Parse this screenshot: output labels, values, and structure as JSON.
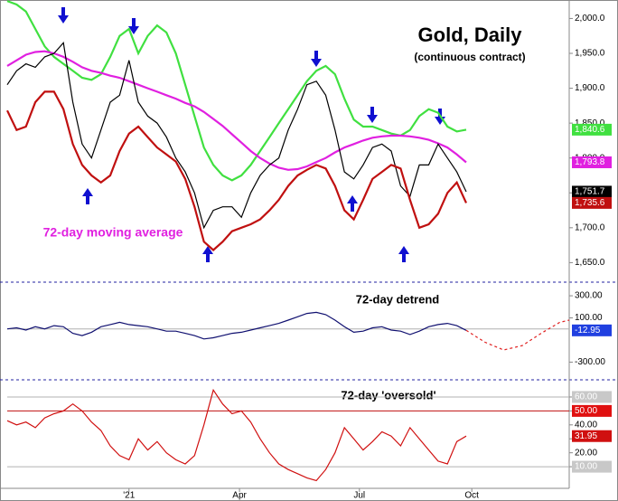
{
  "chart_data": [
    {
      "type": "line",
      "title": "Gold, Daily",
      "subtitle": "(continuous contract)",
      "annotation": "72-day moving average",
      "annotation_color": "#e020e0",
      "xlim": [
        0,
        300
      ],
      "ylim": [
        1622,
        2020
      ],
      "yticks": [
        {
          "value": 1650,
          "label": "1,650.0"
        },
        {
          "value": 1700,
          "label": "1,700.0"
        },
        {
          "value": 1750,
          "label": "1,750.0"
        },
        {
          "value": 1800,
          "label": "1,800.0"
        },
        {
          "value": 1850,
          "label": "1,850.0"
        },
        {
          "value": 1900,
          "label": "1,900.0"
        },
        {
          "value": 1950,
          "label": "1,950.0"
        },
        {
          "value": 2000,
          "label": "2,000.0"
        }
      ],
      "x": [
        0,
        5,
        10,
        15,
        20,
        25,
        30,
        35,
        40,
        45,
        50,
        55,
        60,
        65,
        70,
        75,
        80,
        85,
        90,
        95,
        100,
        105,
        110,
        115,
        120,
        125,
        130,
        135,
        140,
        145,
        150,
        155,
        160,
        165,
        170,
        175,
        180,
        185,
        190,
        195,
        200,
        205,
        210,
        215,
        220,
        225,
        230,
        235,
        240,
        245
      ],
      "series": [
        {
          "color": "#40e040",
          "last_label": "1,840.6",
          "values": [
            2025,
            2020,
            2010,
            1985,
            1960,
            1945,
            1935,
            1925,
            1915,
            1912,
            1920,
            1945,
            1975,
            1985,
            1950,
            1975,
            1990,
            1980,
            1950,
            1905,
            1860,
            1815,
            1790,
            1775,
            1768,
            1775,
            1790,
            1810,
            1830,
            1850,
            1870,
            1890,
            1910,
            1925,
            1932,
            1920,
            1885,
            1855,
            1845,
            1845,
            1840,
            1835,
            1832,
            1840,
            1860,
            1870,
            1865,
            1845,
            1838,
            1840.6
          ]
        },
        {
          "color": "#e020e0",
          "last_label": "1,793.8",
          "values": [
            1932,
            1940,
            1948,
            1952,
            1953,
            1950,
            1945,
            1938,
            1930,
            1925,
            1922,
            1918,
            1915,
            1910,
            1905,
            1900,
            1895,
            1890,
            1885,
            1879,
            1874,
            1866,
            1856,
            1846,
            1834,
            1822,
            1810,
            1800,
            1792,
            1786,
            1783,
            1784,
            1788,
            1794,
            1800,
            1808,
            1815,
            1820,
            1825,
            1829,
            1831,
            1832,
            1832,
            1831,
            1829,
            1826,
            1821,
            1815,
            1805,
            1793.8
          ]
        },
        {
          "color": "#000000",
          "last_label": "1,751.7",
          "values": [
            1905,
            1925,
            1935,
            1930,
            1945,
            1950,
            1965,
            1880,
            1820,
            1800,
            1840,
            1880,
            1890,
            1940,
            1880,
            1860,
            1850,
            1830,
            1800,
            1780,
            1750,
            1700,
            1725,
            1730,
            1730,
            1715,
            1750,
            1775,
            1790,
            1800,
            1840,
            1870,
            1905,
            1910,
            1890,
            1840,
            1780,
            1770,
            1790,
            1815,
            1820,
            1810,
            1760,
            1745,
            1790,
            1790,
            1820,
            1800,
            1780,
            1751.7
          ]
        },
        {
          "color": "#c01010",
          "last_label": "1,735.6",
          "values": [
            1868,
            1840,
            1845,
            1880,
            1895,
            1895,
            1870,
            1820,
            1790,
            1775,
            1765,
            1775,
            1810,
            1835,
            1845,
            1830,
            1815,
            1805,
            1795,
            1770,
            1730,
            1680,
            1668,
            1680,
            1695,
            1700,
            1705,
            1712,
            1725,
            1740,
            1760,
            1775,
            1783,
            1790,
            1785,
            1760,
            1725,
            1712,
            1740,
            1770,
            1780,
            1790,
            1785,
            1740,
            1700,
            1705,
            1720,
            1750,
            1765,
            1735.6
          ]
        }
      ]
    },
    {
      "type": "line",
      "title": "72-day detrend",
      "xlim": [
        0,
        300
      ],
      "ylim": [
        -460,
        415
      ],
      "yticks": [
        {
          "value": -300,
          "label": "-300.00"
        },
        {
          "value": 100,
          "label": "100.00"
        },
        {
          "value": 300,
          "label": "300.00"
        }
      ],
      "reference_lines": [
        {
          "value": 0,
          "color": "#b0b0b0"
        }
      ],
      "x": [
        0,
        5,
        10,
        15,
        20,
        25,
        30,
        35,
        40,
        45,
        50,
        55,
        60,
        65,
        70,
        75,
        80,
        85,
        90,
        95,
        100,
        105,
        110,
        115,
        120,
        125,
        130,
        135,
        140,
        145,
        150,
        155,
        160,
        165,
        170,
        175,
        180,
        185,
        190,
        195,
        200,
        205,
        210,
        215,
        220,
        225,
        230,
        235,
        240,
        245
      ],
      "series": [
        {
          "color": "#101070",
          "last_label": "-12.95",
          "label_color": "#2040e0",
          "values": [
            0,
            10,
            -10,
            20,
            0,
            30,
            20,
            -40,
            -60,
            -30,
            20,
            40,
            60,
            40,
            30,
            20,
            0,
            -20,
            -20,
            -40,
            -60,
            -90,
            -80,
            -60,
            -40,
            -30,
            -10,
            10,
            30,
            50,
            80,
            110,
            140,
            150,
            130,
            80,
            20,
            -30,
            -20,
            10,
            20,
            -10,
            -20,
            -50,
            -20,
            20,
            40,
            50,
            30,
            -12.95
          ]
        },
        {
          "color": "#e02020",
          "dash": true,
          "x": [
            245,
            255,
            265,
            275,
            285,
            295,
            300
          ],
          "values": [
            -12.95,
            -120,
            -190,
            -150,
            -40,
            60,
            80
          ]
        }
      ]
    },
    {
      "type": "line",
      "title": "72-day 'oversold'",
      "xlim": [
        0,
        300
      ],
      "ylim": [
        -5.5,
        71
      ],
      "yticks": [
        {
          "value": 10,
          "label": "10.00",
          "color": "#c8c8c8"
        },
        {
          "value": 20,
          "label": "20.00"
        },
        {
          "value": 30
        },
        {
          "value": 40,
          "label": "40.00"
        },
        {
          "value": 50,
          "label": "50.00",
          "color": "#e01010"
        },
        {
          "value": 60,
          "label": "60.00",
          "color": "#c8c8c8"
        }
      ],
      "reference_lines": [
        {
          "value": 60,
          "color": "#b0b0b0"
        },
        {
          "value": 50,
          "color": "#c01010"
        },
        {
          "value": 10,
          "color": "#b0b0b0"
        }
      ],
      "xticks": [
        {
          "value": 65,
          "label": "'21"
        },
        {
          "value": 124,
          "label": "Apr"
        },
        {
          "value": 188,
          "label": "Jul"
        },
        {
          "value": 248,
          "label": "Oct"
        }
      ],
      "x": [
        0,
        5,
        10,
        15,
        20,
        25,
        30,
        35,
        40,
        45,
        50,
        55,
        60,
        65,
        70,
        75,
        80,
        85,
        90,
        95,
        100,
        105,
        110,
        115,
        120,
        125,
        130,
        135,
        140,
        145,
        150,
        155,
        160,
        165,
        170,
        175,
        180,
        185,
        190,
        195,
        200,
        205,
        210,
        215,
        220,
        225,
        230,
        235,
        240,
        245
      ],
      "series": [
        {
          "color": "#d01010",
          "last_label": "31.95",
          "values": [
            43,
            40,
            42,
            38,
            45,
            48,
            50,
            55,
            50,
            42,
            36,
            25,
            18,
            15,
            30,
            22,
            28,
            20,
            15,
            12,
            18,
            40,
            65,
            55,
            48,
            50,
            42,
            30,
            20,
            12,
            8,
            5,
            2,
            0,
            8,
            20,
            38,
            30,
            22,
            28,
            35,
            32,
            25,
            38,
            30,
            22,
            14,
            12,
            28,
            31.95
          ]
        }
      ]
    }
  ]
}
